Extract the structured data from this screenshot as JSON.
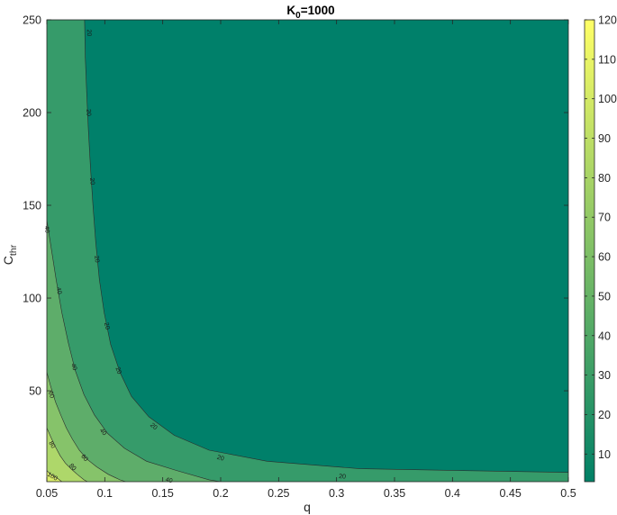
{
  "chart_data": {
    "type": "contourf",
    "title": {
      "main": "K",
      "sub": "0",
      "rest": "=1000"
    },
    "xlabel": "q",
    "ylabel": {
      "main": "C",
      "sub": "thr"
    },
    "xlim": [
      0.05,
      0.5
    ],
    "ylim": [
      1,
      250
    ],
    "x_ticks": [
      0.05,
      0.1,
      0.15,
      0.2,
      0.25,
      0.3,
      0.35,
      0.4,
      0.45,
      0.5
    ],
    "x_tick_labels": [
      "0.05",
      "0.1",
      "0.15",
      "0.2",
      "0.25",
      "0.3",
      "0.35",
      "0.4",
      "0.45",
      "0.5"
    ],
    "y_ticks": [
      50,
      100,
      150,
      200,
      250
    ],
    "y_tick_labels": [
      "50",
      "100",
      "150",
      "200",
      "250"
    ],
    "colorbar": {
      "colormap": "summer (reversed)",
      "range": [
        3,
        120
      ],
      "ticks": [
        10,
        20,
        30,
        40,
        50,
        60,
        70,
        80,
        90,
        100,
        110,
        120
      ],
      "tick_labels": [
        "10",
        "20",
        "30",
        "40",
        "50",
        "60",
        "70",
        "80",
        "90",
        "100",
        "110",
        "120"
      ]
    },
    "levels": [
      20,
      40,
      60,
      80,
      100
    ],
    "level_colors": {
      "below_20": "#00806a",
      "20_40": "#369b6a",
      "40_60": "#5ead6a",
      "60_80": "#86c36a",
      "80_100": "#aed76a",
      "above_100": "#d9ec6a"
    },
    "contours": [
      {
        "level": 20,
        "label": "20",
        "points": [
          [
            0.0826,
            250
          ],
          [
            0.0832,
            230
          ],
          [
            0.0844,
            210
          ],
          [
            0.0859,
            190
          ],
          [
            0.0877,
            170
          ],
          [
            0.0898,
            150
          ],
          [
            0.0922,
            130
          ],
          [
            0.0953,
            110
          ],
          [
            0.0995,
            92
          ],
          [
            0.105,
            75
          ],
          [
            0.113,
            60
          ],
          [
            0.123,
            47
          ],
          [
            0.138,
            36
          ],
          [
            0.16,
            26
          ],
          [
            0.19,
            18
          ],
          [
            0.24,
            12
          ],
          [
            0.32,
            8
          ],
          [
            0.5,
            6
          ]
        ]
      },
      {
        "level": 40,
        "label": "40",
        "points": [
          [
            0.05,
            142
          ],
          [
            0.0535,
            128
          ],
          [
            0.058,
            110
          ],
          [
            0.063,
            92
          ],
          [
            0.0685,
            76
          ],
          [
            0.0745,
            61
          ],
          [
            0.082,
            48
          ],
          [
            0.091,
            37
          ],
          [
            0.1025,
            27
          ],
          [
            0.117,
            19
          ],
          [
            0.136,
            12
          ],
          [
            0.162,
            7
          ],
          [
            0.19,
            2
          ],
          [
            0.2,
            1
          ]
        ]
      },
      {
        "level": 60,
        "label": "60",
        "points": [
          [
            0.05,
            60
          ],
          [
            0.0535,
            52
          ],
          [
            0.0575,
            44
          ],
          [
            0.062,
            37
          ],
          [
            0.0668,
            30
          ],
          [
            0.072,
            24
          ],
          [
            0.078,
            18
          ],
          [
            0.085,
            13
          ],
          [
            0.093,
            9
          ],
          [
            0.103,
            5
          ],
          [
            0.113,
            2
          ],
          [
            0.118,
            1
          ]
        ]
      },
      {
        "level": 80,
        "label": "80",
        "points": [
          [
            0.05,
            30
          ],
          [
            0.0535,
            25
          ],
          [
            0.0572,
            20
          ],
          [
            0.0615,
            15
          ],
          [
            0.066,
            11
          ],
          [
            0.0708,
            8
          ],
          [
            0.0762,
            5
          ],
          [
            0.082,
            2
          ],
          [
            0.085,
            1
          ]
        ]
      },
      {
        "level": 100,
        "label": "100",
        "points": [
          [
            0.05,
            7
          ],
          [
            0.053,
            5
          ],
          [
            0.0562,
            4
          ],
          [
            0.0598,
            2.5
          ],
          [
            0.063,
            1
          ]
        ]
      }
    ],
    "contour_labels": [
      {
        "level": 20,
        "text": "20",
        "at": [
          0.0868,
          243
        ],
        "angle": 88
      },
      {
        "level": 20,
        "text": "20",
        "at": [
          0.0864,
          200
        ],
        "angle": 86
      },
      {
        "level": 20,
        "text": "20",
        "at": [
          0.0895,
          163
        ],
        "angle": 85
      },
      {
        "level": 20,
        "text": "20",
        "at": [
          0.0935,
          121
        ],
        "angle": 83
      },
      {
        "level": 20,
        "text": "20",
        "at": [
          0.1022,
          85
        ],
        "angle": 78
      },
      {
        "level": 20,
        "text": "20",
        "at": [
          0.1122,
          61
        ],
        "angle": 70
      },
      {
        "level": 20,
        "text": "20",
        "at": [
          0.1425,
          31
        ],
        "angle": 40
      },
      {
        "level": 20,
        "text": "20",
        "at": [
          0.2,
          14
        ],
        "angle": 17
      },
      {
        "level": 20,
        "text": "20",
        "at": [
          0.305,
          4
        ],
        "angle": 5
      },
      {
        "level": 40,
        "text": "40",
        "at": [
          0.0505,
          137
        ],
        "angle": 82
      },
      {
        "level": 40,
        "text": "40",
        "at": [
          0.0608,
          104
        ],
        "angle": 77
      },
      {
        "level": 40,
        "text": "40",
        "at": [
          0.0738,
          63
        ],
        "angle": 70
      },
      {
        "level": 40,
        "text": "40",
        "at": [
          0.0988,
          28
        ],
        "angle": 50
      },
      {
        "level": 40,
        "text": "40",
        "at": [
          0.1555,
          2
        ],
        "angle": 15
      },
      {
        "level": 60,
        "text": "60",
        "at": [
          0.0542,
          48
        ],
        "angle": 72
      },
      {
        "level": 60,
        "text": "60",
        "at": [
          0.0828,
          14
        ],
        "angle": 50
      },
      {
        "level": 80,
        "text": "80",
        "at": [
          0.0548,
          21
        ],
        "angle": 60
      },
      {
        "level": 80,
        "text": "80",
        "at": [
          0.0725,
          9
        ],
        "angle": 48
      },
      {
        "level": 100,
        "text": "100",
        "at": [
          0.055,
          4
        ],
        "angle": 30
      }
    ]
  }
}
